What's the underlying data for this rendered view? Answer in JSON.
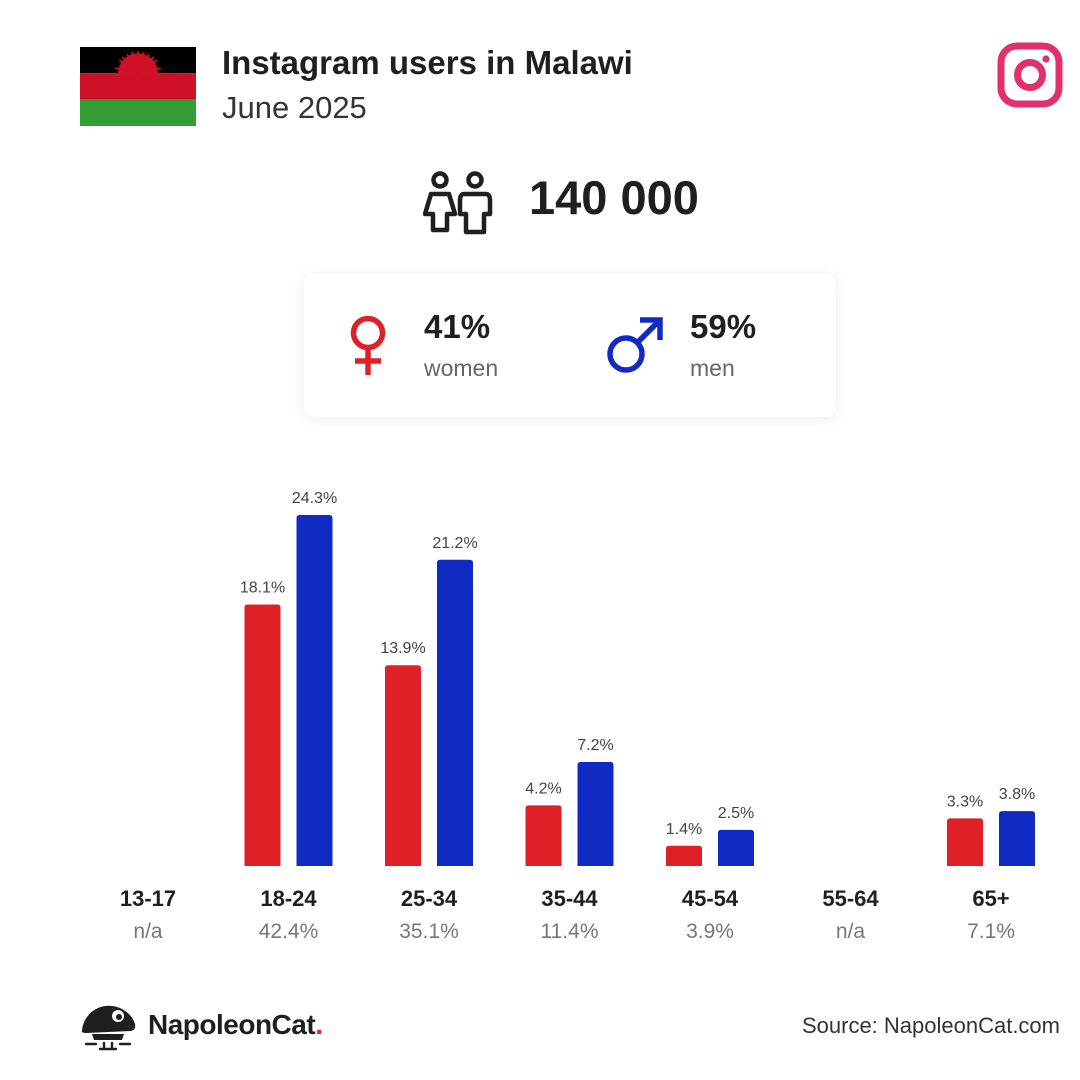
{
  "header": {
    "title": "Instagram users in Malawi",
    "subtitle": "June 2025"
  },
  "total_users": "140 000",
  "gender": {
    "women": {
      "pct": "41%",
      "label": "women"
    },
    "men": {
      "pct": "59%",
      "label": "men"
    }
  },
  "colors": {
    "women": "#e02027",
    "men": "#102bc4",
    "instagram": "#e1306c",
    "flag_black": "#000000",
    "flag_red": "#ce1126",
    "flag_green": "#339e35"
  },
  "icons": {
    "flag": "malawi-flag-icon",
    "instagram": "instagram-icon",
    "people": "people-icon",
    "women": "female-symbol-icon",
    "men": "male-symbol-icon",
    "brand": "napoleoncat-logo-icon"
  },
  "chart_data": {
    "type": "bar",
    "categories": [
      "13-17",
      "18-24",
      "25-34",
      "35-44",
      "45-54",
      "55-64",
      "65+"
    ],
    "category_totals": [
      "n/a",
      "42.4%",
      "35.1%",
      "11.4%",
      "3.9%",
      "n/a",
      "7.1%"
    ],
    "series": [
      {
        "name": "women",
        "values": [
          null,
          18.1,
          13.9,
          4.2,
          1.4,
          null,
          3.3
        ],
        "labels": [
          "",
          "18.1%",
          "13.9%",
          "4.2%",
          "1.4%",
          "",
          "3.3%"
        ]
      },
      {
        "name": "men",
        "values": [
          null,
          24.3,
          21.2,
          7.2,
          2.5,
          null,
          3.8
        ],
        "labels": [
          "",
          "24.3%",
          "21.2%",
          "7.2%",
          "2.5%",
          "",
          "3.8%"
        ]
      }
    ],
    "ylim": [
      0,
      24.3
    ],
    "grid": false
  },
  "footer": {
    "brand": "NapoleonCat",
    "brand_dot": ".",
    "source": "Source: NapoleonCat.com"
  }
}
